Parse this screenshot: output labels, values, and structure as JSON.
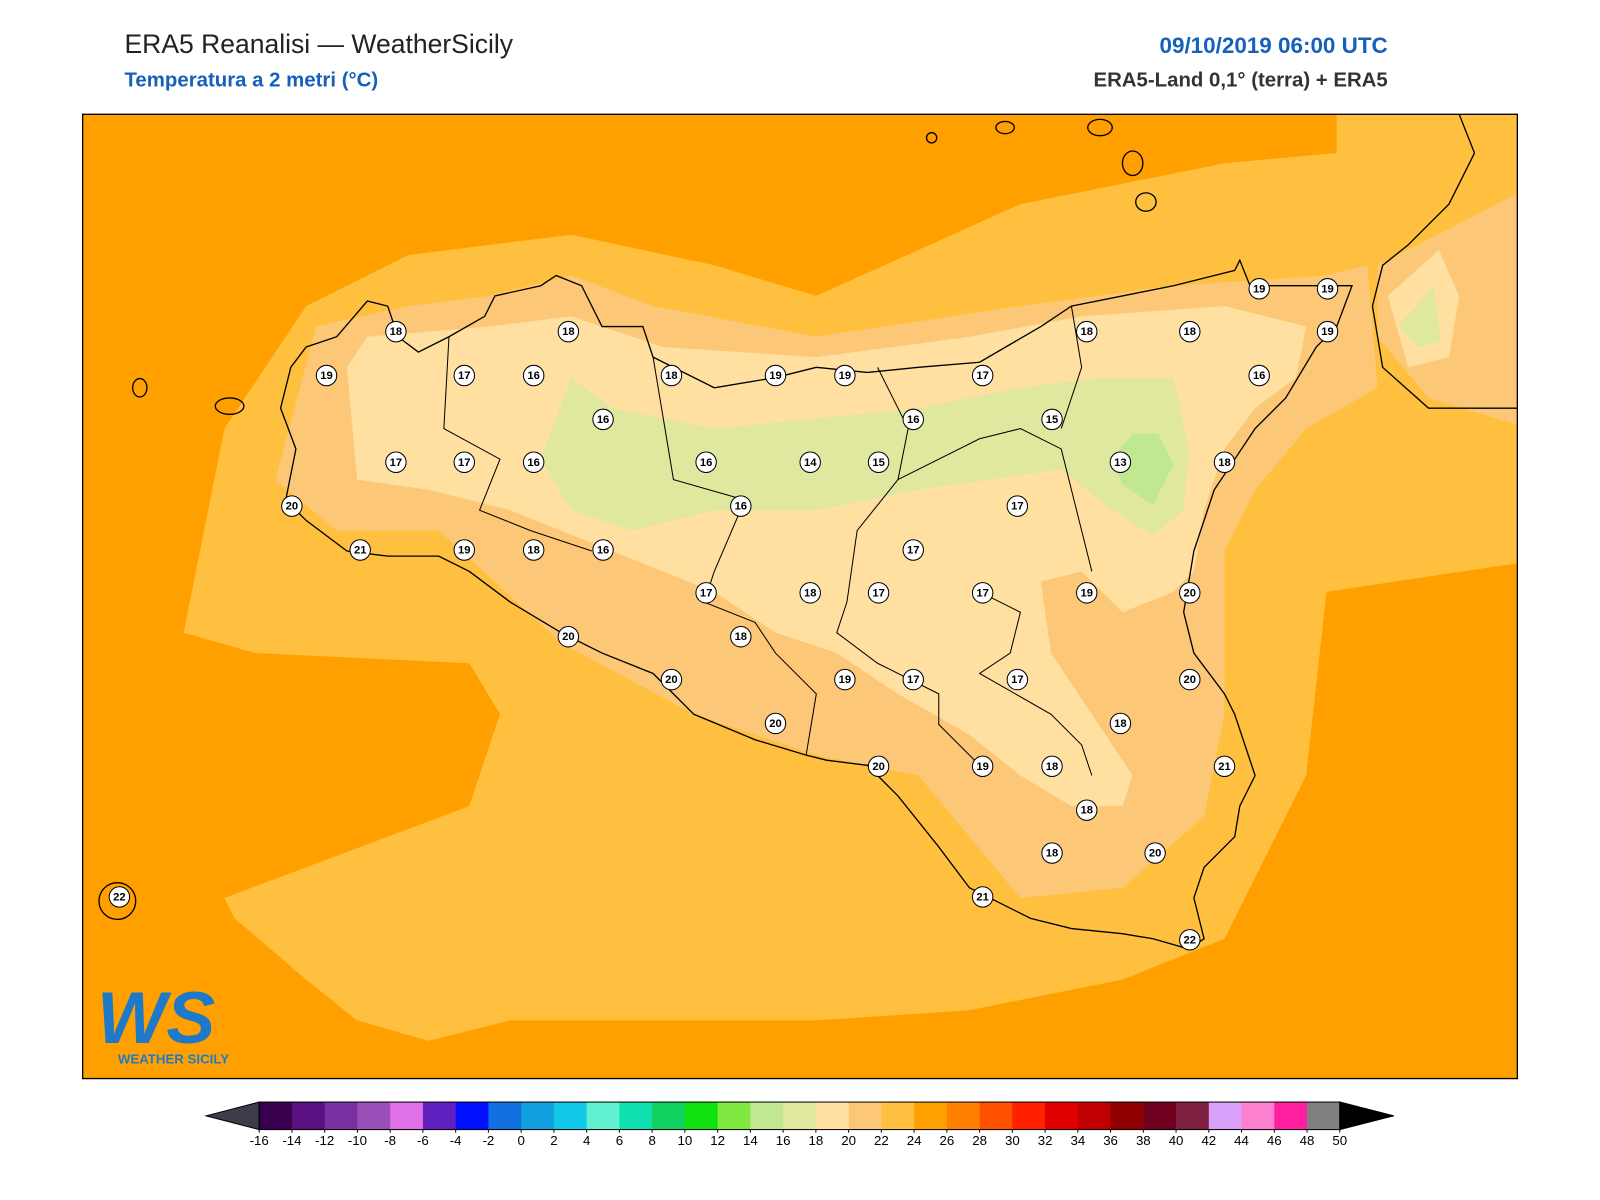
{
  "header": {
    "title": "ERA5 Reanalisi — WeatherSicily",
    "subtitle": "Temperatura a 2 metri (°C)",
    "datetime": "09/10/2019 06:00 UTC",
    "source": "ERA5-Land 0,1° (terra) + ERA5"
  },
  "stations": [
    18,
    18,
    19,
    17,
    16,
    18,
    19,
    19,
    17,
    18,
    18,
    19,
    19,
    19,
    16,
    16,
    16,
    15,
    17,
    17,
    16,
    16,
    14,
    15,
    13,
    18,
    20,
    16,
    17,
    21,
    19,
    18,
    16,
    17,
    17,
    18,
    17,
    17,
    19,
    20,
    20,
    18,
    20,
    19,
    17,
    17,
    20,
    20,
    18,
    20,
    19,
    18,
    21,
    18,
    18,
    20,
    22,
    21,
    22
  ],
  "colorbar": {
    "ticks": [
      -16,
      -14,
      -12,
      -10,
      -8,
      -6,
      -4,
      -2,
      0,
      2,
      4,
      6,
      8,
      10,
      12,
      14,
      16,
      18,
      20,
      22,
      24,
      26,
      28,
      30,
      32,
      34,
      36,
      38,
      40,
      42,
      44,
      46,
      48,
      50
    ],
    "colors": [
      "#3a0050",
      "#5a1080",
      "#7a30a0",
      "#9a50b8",
      "#e070e8",
      "#6020c0",
      "#0010ff",
      "#1070e0",
      "#10a0e0",
      "#10c8e8",
      "#60f0d0",
      "#10e0b0",
      "#10d060",
      "#10e010",
      "#80e840",
      "#c0e890",
      "#e0e8a0",
      "#ffe0a0",
      "#fcc878",
      "#ffc040",
      "#ffa000",
      "#ff8000",
      "#ff5000",
      "#ff2000",
      "#e00000",
      "#c00000",
      "#900000",
      "#700020",
      "#802040",
      "#d8a0f8",
      "#ff80d0",
      "#ff20a0",
      "#808080"
    ],
    "extend_colors": [
      "#3c3c4a",
      "#000000"
    ]
  },
  "logo": {
    "mark": "WS",
    "text": "WEATHER SICILY"
  }
}
